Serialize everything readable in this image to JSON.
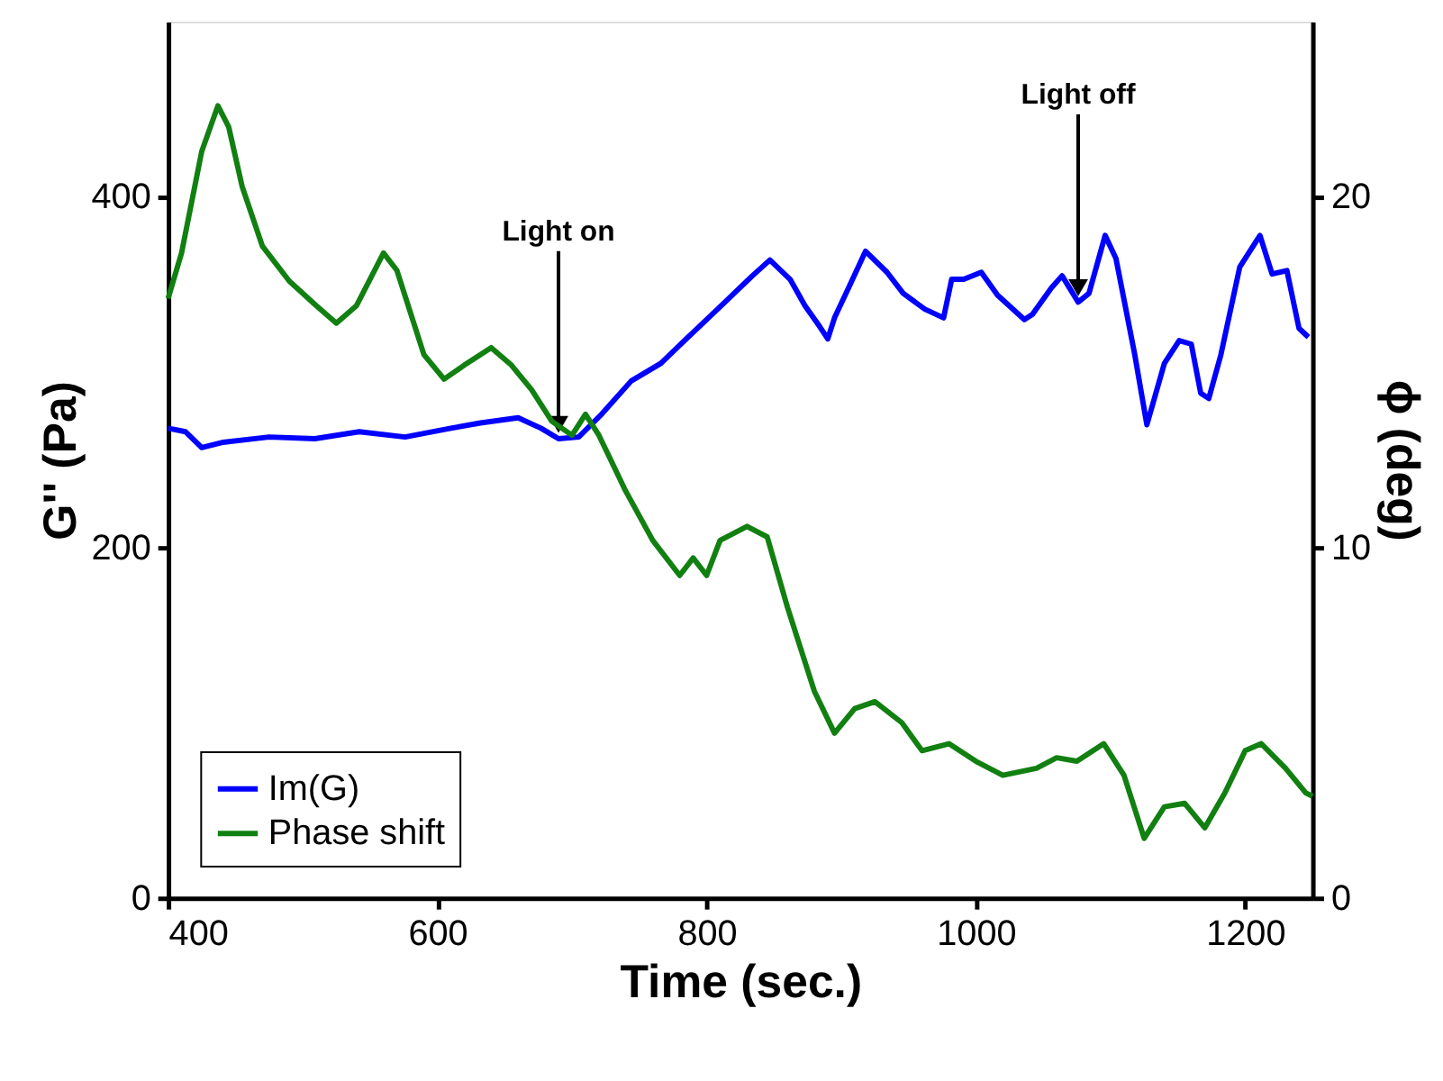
{
  "chart_data": {
    "type": "line",
    "xlabel": "Time (sec.)",
    "ylabel": "G'' (Pa)",
    "y2label": "ϕ (deg)",
    "xlim": [
      400,
      1250
    ],
    "xticks": [
      400,
      600,
      800,
      1000,
      1200
    ],
    "ylim": [
      0,
      500
    ],
    "yticks": [
      0,
      200,
      400
    ],
    "y2lim": [
      0,
      25
    ],
    "y2ticks": [
      0,
      10,
      20
    ],
    "grid": false,
    "legend": "bottom left",
    "line_style": "solid",
    "annotations": [
      {
        "text": "Light on",
        "x": 690,
        "y": 262
      },
      {
        "text": "Light off",
        "x": 1076,
        "y": 340
      }
    ],
    "series": [
      {
        "name": "Im(G)",
        "color": "#0000ff",
        "x": [
          400,
          413,
          425,
          441,
          475,
          509,
          542,
          576,
          610,
          632,
          660,
          677,
          690,
          705,
          722,
          744,
          766,
          789,
          811,
          834,
          847,
          862,
          873,
          884,
          890,
          895,
          906,
          918,
          934,
          946,
          962,
          976,
          982,
          991,
          1004,
          1016,
          1036,
          1042,
          1056,
          1064,
          1076,
          1084,
          1096,
          1104,
          1118,
          1127,
          1140,
          1151,
          1160,
          1167,
          1173,
          1182,
          1196,
          1211,
          1220,
          1231,
          1240,
          1247
        ],
        "values": [
          268,
          266,
          257,
          260,
          263,
          262,
          266,
          263,
          268,
          271,
          274,
          268,
          262,
          263,
          276,
          295,
          305,
          322,
          338,
          355,
          364,
          353,
          338,
          326,
          319,
          331,
          349,
          369,
          357,
          345,
          336,
          331,
          353,
          353,
          357,
          344,
          330,
          333,
          348,
          355,
          340,
          345,
          378,
          365,
          310,
          270,
          305,
          318,
          316,
          288,
          285,
          310,
          360,
          378,
          356,
          358,
          325,
          320
        ]
      },
      {
        "name": "Phase shift",
        "color": "#118011",
        "axis": "y2",
        "x": [
          400,
          410,
          425,
          437,
          445,
          455,
          470,
          490,
          510,
          525,
          540,
          560,
          570,
          590,
          605,
          620,
          640,
          655,
          670,
          685,
          700,
          710,
          720,
          740,
          760,
          780,
          790,
          800,
          810,
          830,
          845,
          860,
          880,
          895,
          910,
          925,
          945,
          960,
          980,
          1000,
          1020,
          1045,
          1060,
          1075,
          1095,
          1110,
          1125,
          1140,
          1155,
          1170,
          1185,
          1200,
          1212,
          1230,
          1245,
          1250
        ],
        "values": [
          17.1,
          18.4,
          21.3,
          22.6,
          22.0,
          20.3,
          18.6,
          17.6,
          16.9,
          16.4,
          16.9,
          18.4,
          17.9,
          15.5,
          14.8,
          15.2,
          15.7,
          15.2,
          14.5,
          13.6,
          13.2,
          13.8,
          13.2,
          11.6,
          10.2,
          9.2,
          9.7,
          9.2,
          10.2,
          10.6,
          10.3,
          8.3,
          5.9,
          4.7,
          5.4,
          5.6,
          5.0,
          4.2,
          4.4,
          3.9,
          3.5,
          3.7,
          4.0,
          3.9,
          4.4,
          3.5,
          1.7,
          2.6,
          2.7,
          2.0,
          3.0,
          4.2,
          4.4,
          3.7,
          3.0,
          2.9
        ]
      }
    ]
  }
}
